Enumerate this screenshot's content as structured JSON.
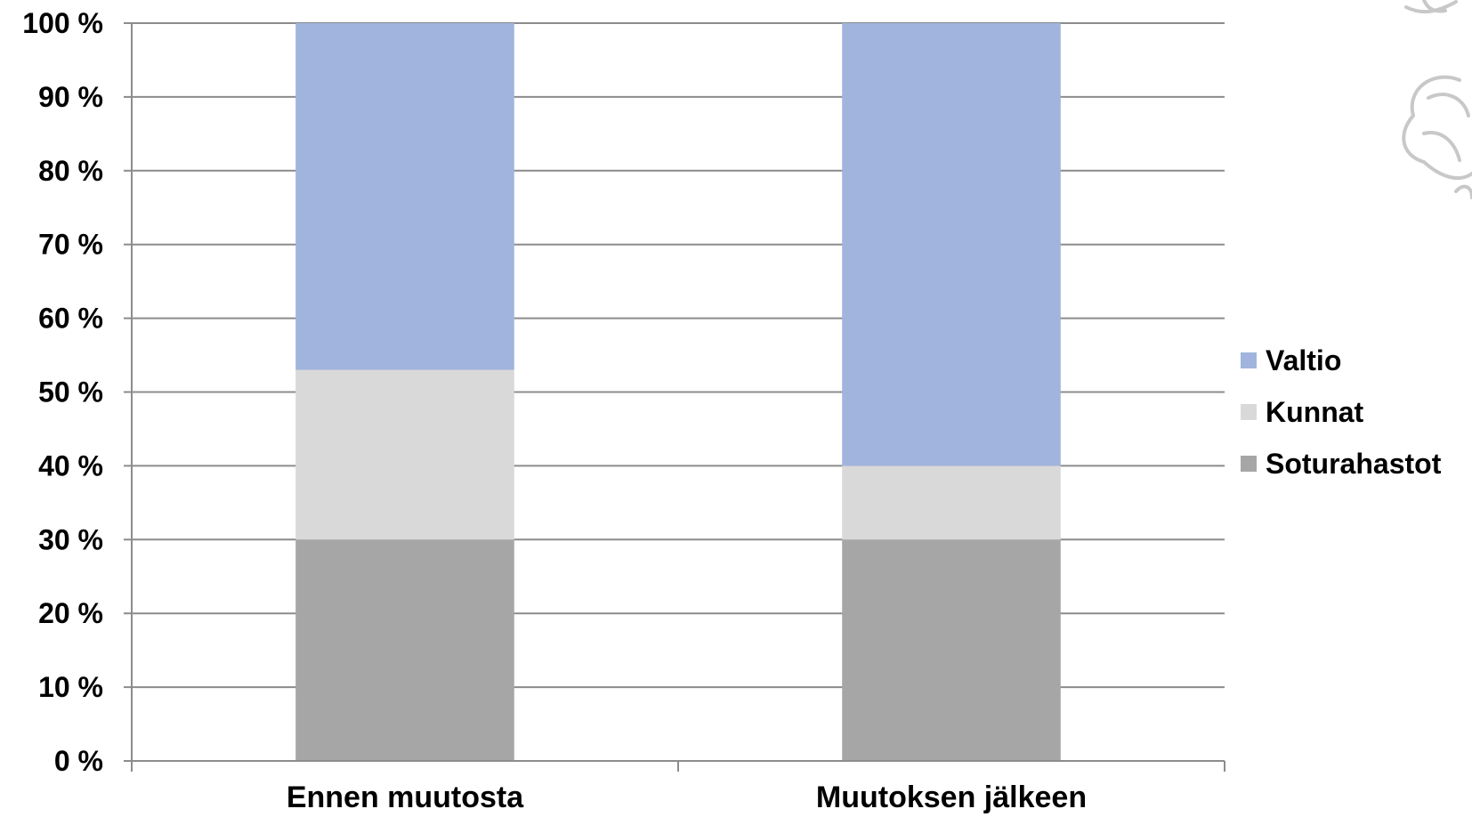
{
  "chart_data": {
    "type": "bar",
    "stacked": true,
    "percent_stacked": true,
    "categories": [
      "Ennen muutosta",
      "Muutoksen jälkeen"
    ],
    "series": [
      {
        "name": "Soturahastot",
        "values": [
          30,
          30
        ],
        "color": "#a6a6a6"
      },
      {
        "name": "Kunnat",
        "values": [
          23,
          10
        ],
        "color": "#d9d9d9"
      },
      {
        "name": "Valtio",
        "values": [
          47,
          60
        ],
        "color": "#a1b4de"
      }
    ],
    "ylim": [
      0,
      100
    ],
    "yticks": [
      0,
      10,
      20,
      30,
      40,
      50,
      60,
      70,
      80,
      90,
      100
    ],
    "ytick_labels": [
      "0 %",
      "10 %",
      "20 %",
      "30 %",
      "40 %",
      "50 %",
      "60 %",
      "70 %",
      "80 %",
      "90 %",
      "100 %"
    ],
    "grid": true,
    "legend_placement": "right",
    "legend_order": [
      "Valtio",
      "Kunnat",
      "Soturahastot"
    ],
    "title": "",
    "xlabel": "",
    "ylabel": ""
  },
  "decoration": {
    "icon": "lion-emblem-icon"
  }
}
